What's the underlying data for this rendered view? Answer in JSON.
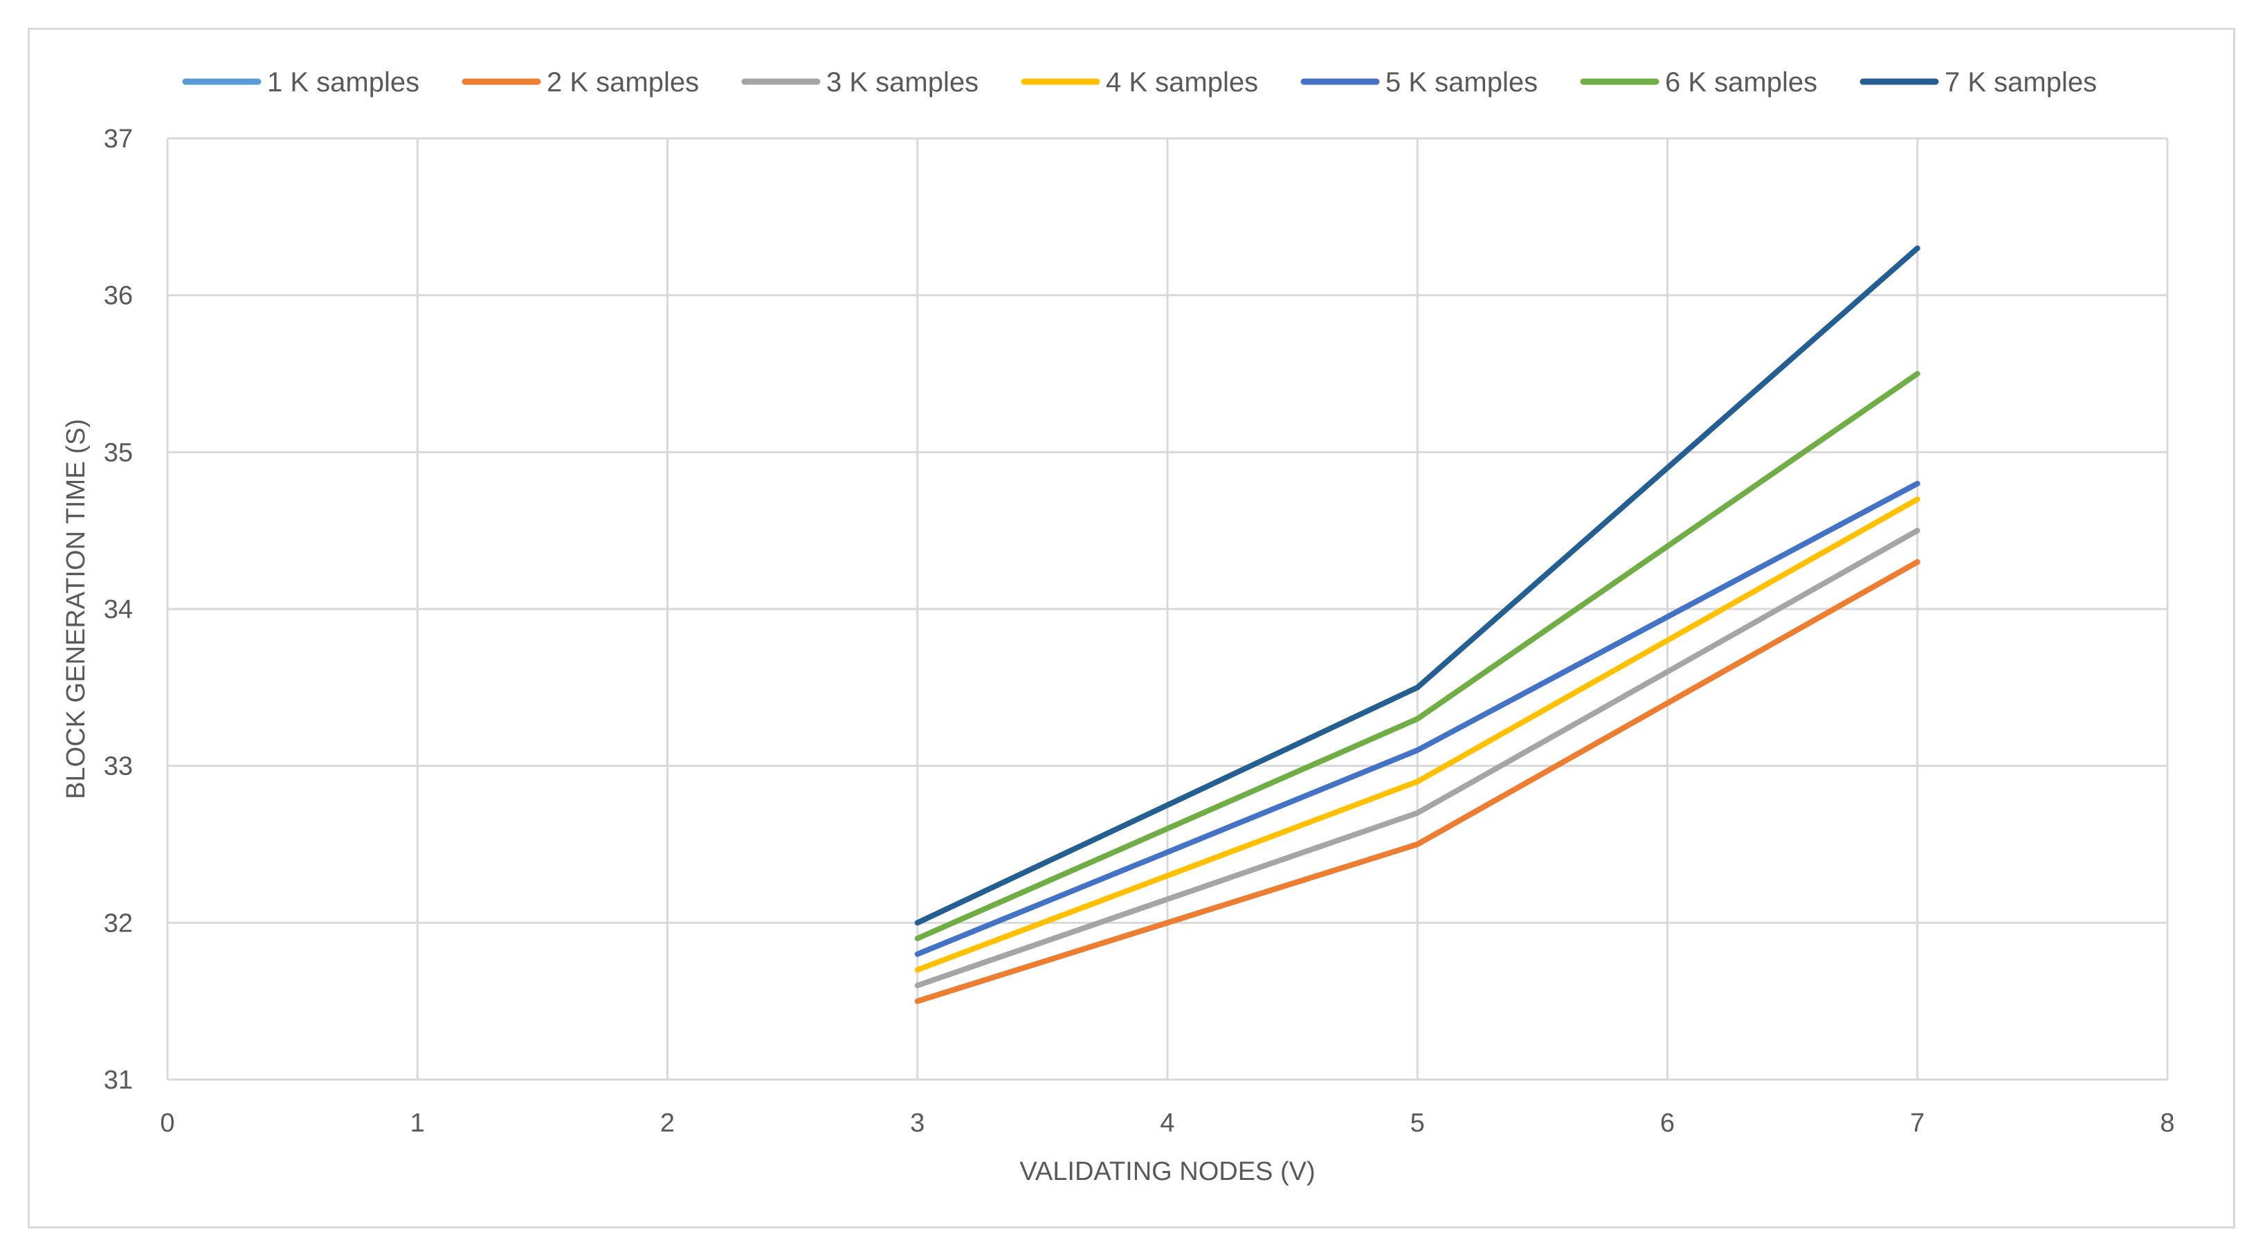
{
  "chart_data": {
    "type": "line",
    "title": "",
    "xlabel": "VALIDATING NODES (V)",
    "ylabel": "BLOCK GENERATION TIME (S)",
    "xlim": [
      0,
      8
    ],
    "ylim": [
      31,
      37
    ],
    "x_ticks": [
      "0",
      "1",
      "2",
      "3",
      "4",
      "5",
      "6",
      "7",
      "8"
    ],
    "y_ticks": [
      "31",
      "32",
      "33",
      "34",
      "35",
      "36",
      "37"
    ],
    "grid": true,
    "legend_position": "top",
    "x": [
      3,
      5,
      7
    ],
    "series": [
      {
        "name": "1 K samples",
        "color": "#5b9bd5",
        "values": [
          31.5,
          32.5,
          34.3
        ]
      },
      {
        "name": "2 K samples",
        "color": "#ed7d31",
        "values": [
          31.5,
          32.5,
          34.3
        ]
      },
      {
        "name": "3 K samples",
        "color": "#a5a5a5",
        "values": [
          31.6,
          32.7,
          34.5
        ]
      },
      {
        "name": "4 K samples",
        "color": "#ffc000",
        "values": [
          31.7,
          32.9,
          34.7
        ]
      },
      {
        "name": "5 K samples",
        "color": "#4472c4",
        "values": [
          31.8,
          33.1,
          34.8
        ]
      },
      {
        "name": "6 K samples",
        "color": "#70ad47",
        "values": [
          31.9,
          33.3,
          35.5
        ]
      },
      {
        "name": "7 K samples",
        "color": "#255e91",
        "values": [
          32.0,
          33.5,
          36.3
        ]
      }
    ]
  }
}
